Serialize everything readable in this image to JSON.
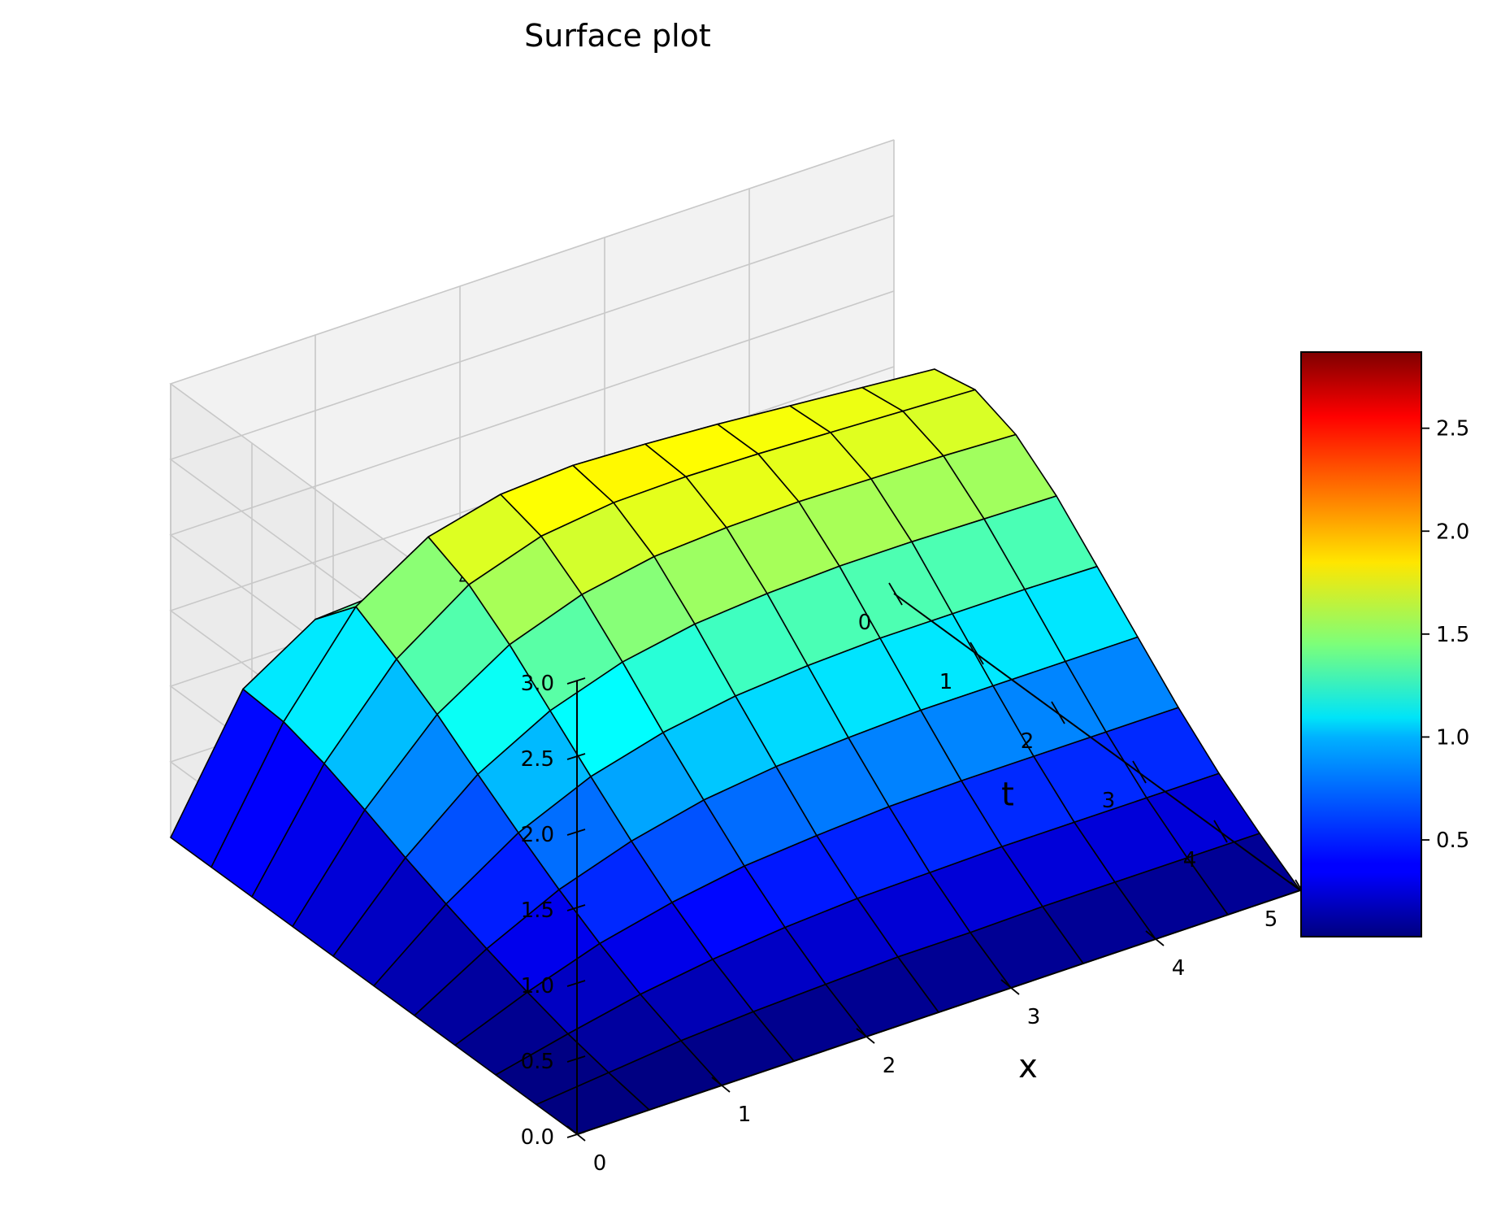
{
  "chart_data": {
    "type": "surface",
    "title": "Surface plot",
    "xlabel": "x",
    "ylabel": "t",
    "zlabel": "",
    "xlim": [
      0,
      5
    ],
    "tlim": [
      0,
      5
    ],
    "zlim": [
      0,
      3
    ],
    "x_ticks": [
      "0",
      "1",
      "2",
      "3",
      "4",
      "5"
    ],
    "t_ticks": [
      "0",
      "1",
      "2",
      "3",
      "4",
      "5"
    ],
    "z_ticks": [
      "0.0",
      "0.5",
      "1.0",
      "1.5",
      "2.0",
      "2.5",
      "3.0"
    ],
    "colormap": "jet",
    "edgecolor": "#000000",
    "colorbar": {
      "range": [
        0.03,
        2.87
      ],
      "ticks": [
        "0.5",
        "1.0",
        "1.5",
        "2.0",
        "2.5"
      ],
      "tick_values": [
        0.5,
        1.0,
        1.5,
        2.0,
        2.5
      ]
    },
    "grid": true,
    "surface": {
      "x": [
        0,
        0.5,
        1.0,
        1.5,
        2.0,
        2.5,
        3.0,
        3.5,
        4.0,
        4.5,
        5.0
      ],
      "t": [
        0,
        0.5,
        1.0,
        1.5,
        2.0,
        2.5,
        3.0,
        3.5,
        4.0,
        4.5,
        5.0
      ],
      "z": [
        [
          0.0,
          0.82,
          1.12,
          1.15,
          1.05,
          0.9,
          0.74,
          0.58,
          0.44,
          0.32,
          0.21
        ],
        [
          0.0,
          0.8,
          1.4,
          1.7,
          1.82,
          1.85,
          1.83,
          1.8,
          1.76,
          1.72,
          1.68
        ],
        [
          0.0,
          0.72,
          1.25,
          1.58,
          1.74,
          1.8,
          1.81,
          1.8,
          1.78,
          1.76,
          1.74
        ],
        [
          0.0,
          0.61,
          1.08,
          1.38,
          1.55,
          1.64,
          1.67,
          1.68,
          1.67,
          1.66,
          1.64
        ],
        [
          0.0,
          0.49,
          0.88,
          1.14,
          1.3,
          1.39,
          1.43,
          1.45,
          1.45,
          1.44,
          1.43
        ],
        [
          0.0,
          0.38,
          0.69,
          0.9,
          1.03,
          1.11,
          1.15,
          1.17,
          1.17,
          1.17,
          1.16
        ],
        [
          0.0,
          0.28,
          0.51,
          0.67,
          0.78,
          0.84,
          0.87,
          0.89,
          0.89,
          0.89,
          0.89
        ],
        [
          0.0,
          0.19,
          0.35,
          0.46,
          0.54,
          0.58,
          0.61,
          0.62,
          0.62,
          0.62,
          0.62
        ],
        [
          0.0,
          0.11,
          0.21,
          0.28,
          0.33,
          0.36,
          0.37,
          0.38,
          0.38,
          0.38,
          0.38
        ],
        [
          0.0,
          0.05,
          0.1,
          0.13,
          0.15,
          0.17,
          0.17,
          0.18,
          0.18,
          0.18,
          0.18
        ],
        [
          0.0,
          0.0,
          0.0,
          0.0,
          0.0,
          0.0,
          0.0,
          0.0,
          0.0,
          0.0,
          0.0
        ]
      ]
    }
  }
}
